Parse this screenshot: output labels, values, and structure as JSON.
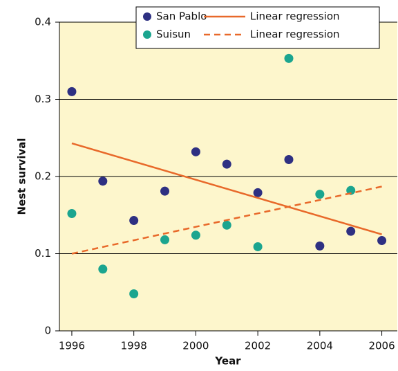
{
  "chart_data": {
    "type": "scatter",
    "xlabel": "Year",
    "ylabel": "Nest survival",
    "xlim": [
      1995.6,
      2006.5
    ],
    "ylim": [
      0,
      0.4
    ],
    "xticks": [
      1996,
      1998,
      2000,
      2002,
      2004,
      2006
    ],
    "yticks": [
      0,
      0.1,
      0.2,
      0.3,
      0.4
    ],
    "grid": true,
    "legend": "top-right",
    "background": "#fdf6cc",
    "series": [
      {
        "name": "San Pablo",
        "type": "scatter",
        "color": "#2e3082",
        "x": [
          1996,
          1997,
          1998,
          1999,
          2000,
          2001,
          2002,
          2003,
          2004,
          2005,
          2006
        ],
        "values": [
          0.31,
          0.194,
          0.143,
          0.181,
          0.232,
          0.216,
          0.179,
          0.222,
          0.11,
          0.129,
          0.117
        ]
      },
      {
        "name": "Suisun",
        "type": "scatter",
        "color": "#1ba58f",
        "x": [
          1996,
          1997,
          1998,
          1999,
          2000,
          2001,
          2002,
          2003,
          2004,
          2005
        ],
        "values": [
          0.152,
          0.08,
          0.048,
          0.118,
          0.124,
          0.137,
          0.109,
          0.353,
          0.177,
          0.182
        ]
      },
      {
        "name": "Linear regression",
        "type": "line",
        "dash": false,
        "color": "#e8692a",
        "x": [
          1996,
          2006
        ],
        "values": [
          0.243,
          0.125
        ]
      },
      {
        "name": "Linear regression",
        "type": "line",
        "dash": true,
        "color": "#e8692a",
        "x": [
          1996,
          2006
        ],
        "values": [
          0.1,
          0.187
        ]
      }
    ]
  }
}
